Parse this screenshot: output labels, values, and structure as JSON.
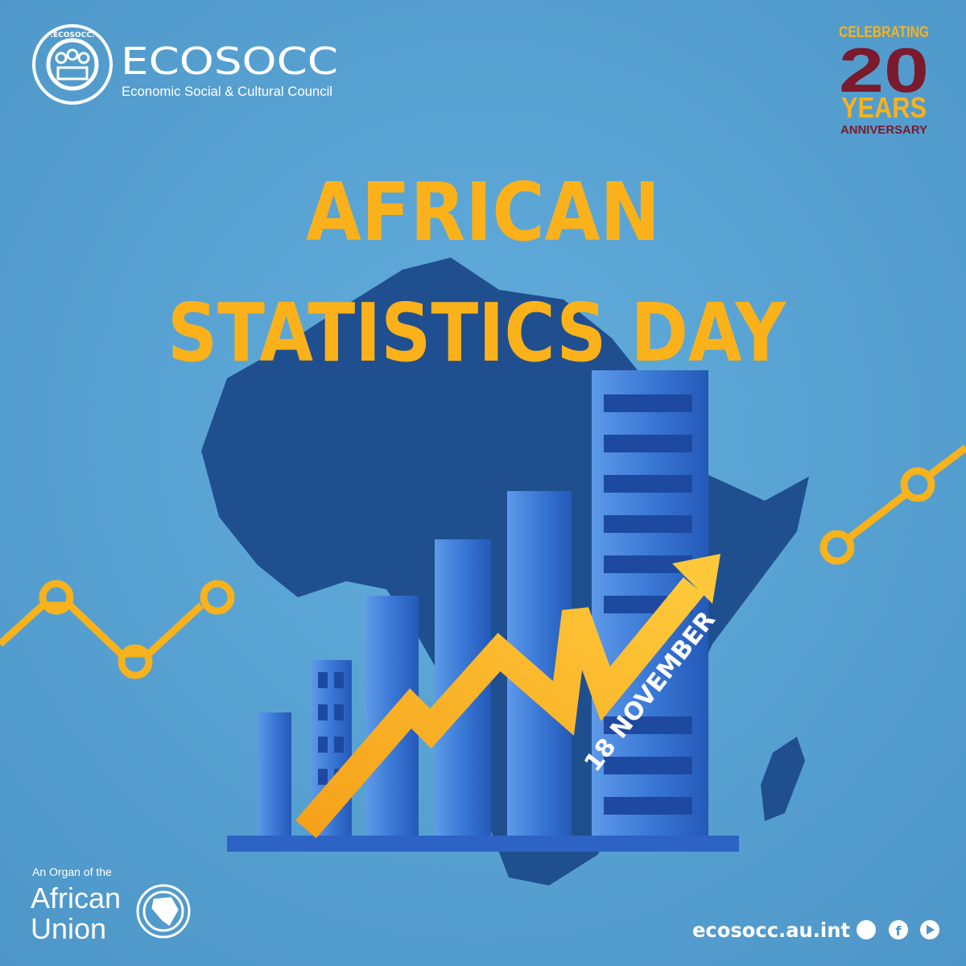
{
  "header": {
    "logo_ring": ".ECOSOCC.",
    "org_name": "ECOSOCC",
    "org_full_name": "Economic Social & Cultural Council"
  },
  "anniversary": {
    "line1": "CELEBRATING",
    "number": "20",
    "line2": "YEARS",
    "line3": "ANNIVERSARY"
  },
  "title": {
    "line1": "AFRICAN",
    "line2": "STATISTICS DAY"
  },
  "date": "18 NOVEMBER",
  "footer": {
    "organ_label": "An Organ of the",
    "union_line1": "African",
    "union_line2": "Union",
    "website": "ecosocc.au.int",
    "social_facebook": "f"
  }
}
